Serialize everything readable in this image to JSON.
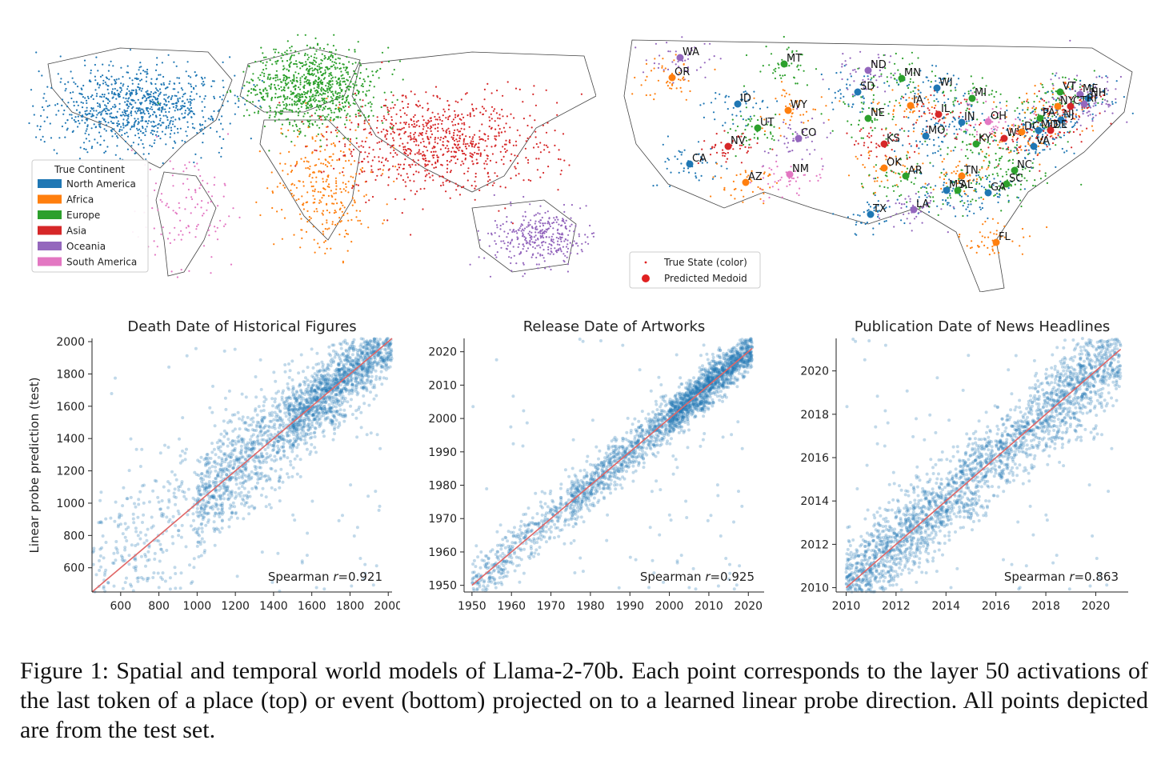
{
  "colors": {
    "North America": "#1f77b4",
    "Africa": "#ff7f0e",
    "Europe": "#2ca02c",
    "Asia": "#d62728",
    "Oceania": "#9467bd",
    "South America": "#e377c2",
    "scatter_point": "#1f77b4",
    "fit_line": "#e06666"
  },
  "world_map": {
    "legend_title": "True Continent",
    "legend_items": [
      "North America",
      "Africa",
      "Europe",
      "Asia",
      "Oceania",
      "South America"
    ]
  },
  "us_map": {
    "legend_items": [
      {
        "label": "True State (color)",
        "marker": "small-dot"
      },
      {
        "label": "Predicted Medoid",
        "marker": "large-dot"
      }
    ],
    "states": [
      {
        "abbr": "WA",
        "color": "Oceania"
      },
      {
        "abbr": "OR",
        "color": "Africa"
      },
      {
        "abbr": "MT",
        "color": "Europe"
      },
      {
        "abbr": "ND",
        "color": "Oceania"
      },
      {
        "abbr": "MN",
        "color": "Europe"
      },
      {
        "abbr": "SD",
        "color": "North America"
      },
      {
        "abbr": "WI",
        "color": "North America"
      },
      {
        "abbr": "ID",
        "color": "North America"
      },
      {
        "abbr": "WY",
        "color": "Africa"
      },
      {
        "abbr": "MI",
        "color": "Europe"
      },
      {
        "abbr": "VT",
        "color": "Europe"
      },
      {
        "abbr": "ME",
        "color": "Oceania"
      },
      {
        "abbr": "NH",
        "color": "North America"
      },
      {
        "abbr": "NY",
        "color": "Africa"
      },
      {
        "abbr": "CT",
        "color": "Asia"
      },
      {
        "abbr": "RI",
        "color": "Oceania"
      },
      {
        "abbr": "IA",
        "color": "Africa"
      },
      {
        "abbr": "IL",
        "color": "Asia"
      },
      {
        "abbr": "UT",
        "color": "Europe"
      },
      {
        "abbr": "NE",
        "color": "Europe"
      },
      {
        "abbr": "IN",
        "color": "North America"
      },
      {
        "abbr": "OH",
        "color": "South America"
      },
      {
        "abbr": "PA",
        "color": "Europe"
      },
      {
        "abbr": "NJ",
        "color": "North America"
      },
      {
        "abbr": "NV",
        "color": "Asia"
      },
      {
        "abbr": "CO",
        "color": "Oceania"
      },
      {
        "abbr": "MO",
        "color": "North America"
      },
      {
        "abbr": "KS",
        "color": "Asia"
      },
      {
        "abbr": "WV",
        "color": "Asia"
      },
      {
        "abbr": "DC",
        "color": "Africa"
      },
      {
        "abbr": "MD",
        "color": "North America"
      },
      {
        "abbr": "DE",
        "color": "Asia"
      },
      {
        "abbr": "KY",
        "color": "Europe"
      },
      {
        "abbr": "VA",
        "color": "North America"
      },
      {
        "abbr": "CA",
        "color": "North America"
      },
      {
        "abbr": "OK",
        "color": "Africa"
      },
      {
        "abbr": "NM",
        "color": "South America"
      },
      {
        "abbr": "AZ",
        "color": "Africa"
      },
      {
        "abbr": "AR",
        "color": "Europe"
      },
      {
        "abbr": "TN",
        "color": "Africa"
      },
      {
        "abbr": "NC",
        "color": "Europe"
      },
      {
        "abbr": "SC",
        "color": "Europe"
      },
      {
        "abbr": "MS",
        "color": "North America"
      },
      {
        "abbr": "AL",
        "color": "Europe"
      },
      {
        "abbr": "GA",
        "color": "North America"
      },
      {
        "abbr": "TX",
        "color": "North America"
      },
      {
        "abbr": "LA",
        "color": "Oceania"
      },
      {
        "abbr": "FL",
        "color": "Africa"
      }
    ]
  },
  "chart_data": [
    {
      "type": "scatter",
      "title": "Death Date of Historical Figures",
      "xlabel": "",
      "ylabel": "Linear probe prediction (test)",
      "xlim": [
        450,
        2020
      ],
      "ylim": [
        450,
        2020
      ],
      "xticks": [
        600,
        800,
        1000,
        1200,
        1400,
        1600,
        1800,
        2000
      ],
      "yticks": [
        600,
        800,
        1000,
        1200,
        1400,
        1600,
        1800,
        2000
      ],
      "annotation": "Spearman r=0.921",
      "spearman_r": 0.921,
      "fit_line": [
        [
          450,
          450
        ],
        [
          2020,
          2020
        ]
      ],
      "point_density": [
        {
          "x_range": [
            450,
            1000
          ],
          "y_spread": 260,
          "weight": 0.12
        },
        {
          "x_range": [
            1000,
            1500
          ],
          "y_spread": 160,
          "weight": 0.33
        },
        {
          "x_range": [
            1500,
            2020
          ],
          "y_spread": 110,
          "weight": 0.55
        }
      ]
    },
    {
      "type": "scatter",
      "title": "Release Date of Artworks",
      "xlabel": "",
      "ylabel": "",
      "xlim": [
        1948,
        2024
      ],
      "ylim": [
        1948,
        2024
      ],
      "xticks": [
        1950,
        1960,
        1970,
        1980,
        1990,
        2000,
        2010,
        2020
      ],
      "yticks": [
        1950,
        1960,
        1970,
        1980,
        1990,
        2000,
        2010,
        2020
      ],
      "annotation": "Spearman r=0.925",
      "spearman_r": 0.925,
      "fit_line": [
        [
          1950,
          1950
        ],
        [
          2021,
          2021
        ]
      ],
      "point_density": [
        {
          "x_range": [
            1950,
            1975
          ],
          "y_spread": 4,
          "weight": 0.15
        },
        {
          "x_range": [
            1975,
            2000
          ],
          "y_spread": 3.5,
          "weight": 0.3
        },
        {
          "x_range": [
            2000,
            2021
          ],
          "y_spread": 3,
          "weight": 0.55
        }
      ]
    },
    {
      "type": "scatter",
      "title": "Publication Date of News Headlines",
      "xlabel": "",
      "ylabel": "",
      "xlim": [
        2009.6,
        2021.3
      ],
      "ylim": [
        2009.8,
        2021.5
      ],
      "xticks": [
        2010,
        2012,
        2014,
        2016,
        2018,
        2020
      ],
      "yticks": [
        2010,
        2012,
        2014,
        2016,
        2018,
        2020
      ],
      "annotation": "Spearman r=0.863",
      "spearman_r": 0.863,
      "fit_line": [
        [
          2010,
          2010
        ],
        [
          2021,
          2021
        ]
      ],
      "point_density": [
        {
          "x_range": [
            2010,
            2013
          ],
          "y_spread": 1.0,
          "weight": 0.3
        },
        {
          "x_range": [
            2013,
            2018
          ],
          "y_spread": 0.9,
          "weight": 0.4
        },
        {
          "x_range": [
            2018,
            2021
          ],
          "y_spread": 1.1,
          "weight": 0.3
        }
      ]
    }
  ],
  "caption": "Figure 1: Spatial and temporal world models of Llama-2-70b. Each point corresponds to the layer 50 activations of the last token of a place (top) or event (bottom) projected on to a learned linear probe direction. All points depicted are from the test set."
}
